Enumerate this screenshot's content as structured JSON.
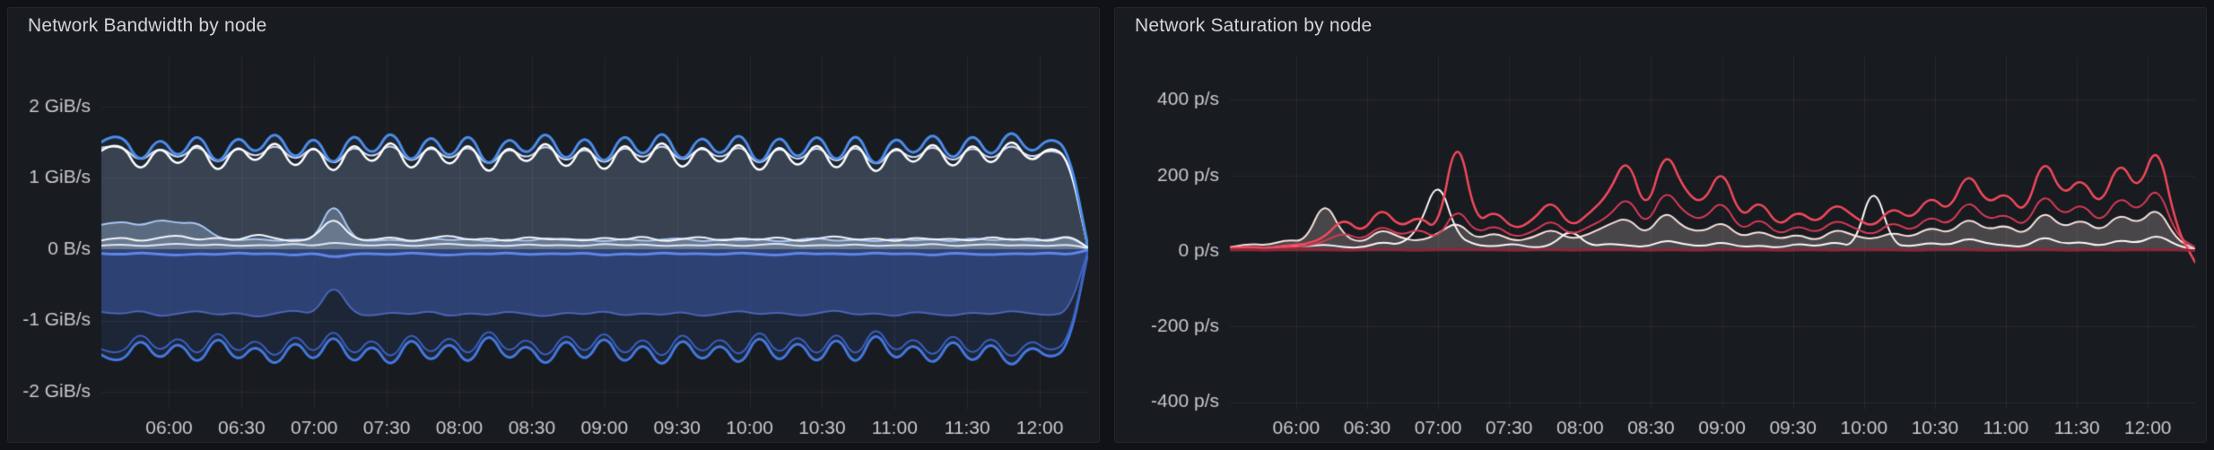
{
  "theme": {
    "page_bg": "#111217",
    "panel_bg": "#181b1f",
    "panel_border": "#25262c",
    "grid_color": "rgba(204,204,220,0.08)",
    "axis_text_color": "#c7c8ce",
    "title_color": "#d3d4da"
  },
  "chart_data": [
    {
      "type": "line",
      "title": "Network Bandwidth by node",
      "ylabel_unit": "GiB/s",
      "ylim": [
        -2.25,
        2.7
      ],
      "trange": [
        -28,
        380
      ],
      "t_start_min": -28,
      "sample_interval_min": 8,
      "grid": true,
      "legend": "none",
      "yticks": [
        {
          "v": 2,
          "label": "2 GiB/s"
        },
        {
          "v": 1,
          "label": "1 GiB/s"
        },
        {
          "v": 0,
          "label": "0 B/s"
        },
        {
          "v": -1,
          "label": "-1 GiB/s"
        },
        {
          "v": -2,
          "label": "-2 GiB/s"
        }
      ],
      "xticks": [
        {
          "t": 0,
          "label": "06:00"
        },
        {
          "t": 30,
          "label": "06:30"
        },
        {
          "t": 60,
          "label": "07:00"
        },
        {
          "t": 90,
          "label": "07:30"
        },
        {
          "t": 120,
          "label": "08:00"
        },
        {
          "t": 150,
          "label": "08:30"
        },
        {
          "t": 180,
          "label": "09:00"
        },
        {
          "t": 210,
          "label": "09:30"
        },
        {
          "t": 240,
          "label": "10:00"
        },
        {
          "t": 270,
          "label": "10:30"
        },
        {
          "t": 300,
          "label": "11:00"
        },
        {
          "t": 330,
          "label": "11:30"
        },
        {
          "t": 360,
          "label": "12:00"
        }
      ],
      "series": [
        {
          "name": "receive-pale-line",
          "color": "#cbd7ee",
          "width": 2,
          "values": [
            1.42,
            1.48,
            1.2,
            1.45,
            1.24,
            1.49,
            1.15,
            1.46,
            1.26,
            1.5,
            1.21,
            1.47,
            1.13,
            1.48,
            1.25,
            1.51,
            1.17,
            1.47,
            1.22,
            1.49,
            1.12,
            1.45,
            1.24,
            1.5,
            1.18,
            1.46,
            1.14,
            1.48,
            1.23,
            1.51,
            1.19,
            1.46,
            1.24,
            1.49,
            1.13,
            1.47,
            1.2,
            1.48,
            1.16,
            1.5,
            1.11,
            1.45,
            1.23,
            1.49,
            1.18,
            1.47,
            1.22,
            1.5,
            1.26,
            1.4,
            1.3,
            0.02
          ]
        },
        {
          "name": "receive-white-line",
          "color": "#ffffff",
          "width": 2.5,
          "fill": "rgba(200,212,228,0.17)",
          "values": [
            1.38,
            1.55,
            1.02,
            1.5,
            1.1,
            1.58,
            0.98,
            1.52,
            1.15,
            1.6,
            1.05,
            1.54,
            0.96,
            1.57,
            1.12,
            1.62,
            1.0,
            1.55,
            1.08,
            1.58,
            0.95,
            1.52,
            1.13,
            1.6,
            1.03,
            1.55,
            0.98,
            1.57,
            1.1,
            1.62,
            1.02,
            1.53,
            1.12,
            1.59,
            0.96,
            1.55,
            1.06,
            1.58,
            1.0,
            1.6,
            0.94,
            1.52,
            1.12,
            1.58,
            1.04,
            1.56,
            1.1,
            1.61,
            1.18,
            1.45,
            1.28,
            0.02
          ]
        },
        {
          "name": "receive-blue-line",
          "color": "#4b8ceb",
          "width": 3,
          "fill": "rgba(75,140,235,0.10)",
          "values": [
            1.5,
            1.68,
            1.15,
            1.62,
            1.22,
            1.7,
            1.1,
            1.65,
            1.28,
            1.72,
            1.18,
            1.66,
            1.08,
            1.7,
            1.25,
            1.74,
            1.12,
            1.68,
            1.2,
            1.71,
            1.06,
            1.64,
            1.26,
            1.73,
            1.15,
            1.67,
            1.1,
            1.7,
            1.22,
            1.75,
            1.14,
            1.66,
            1.24,
            1.72,
            1.08,
            1.68,
            1.18,
            1.7,
            1.12,
            1.73,
            1.05,
            1.65,
            1.25,
            1.71,
            1.16,
            1.69,
            1.22,
            1.74,
            1.3,
            1.58,
            1.4,
            0.03
          ]
        },
        {
          "name": "receive-low-lightblue",
          "color": "#a9c7f2",
          "width": 2,
          "fill": "rgba(169,199,242,0.30)",
          "values": [
            0.34,
            0.4,
            0.32,
            0.42,
            0.36,
            0.38,
            0.16,
            0.12,
            0.15,
            0.11,
            0.14,
            0.12,
            0.72,
            0.14,
            0.11,
            0.14,
            0.1,
            0.16,
            0.12,
            0.15,
            0.1,
            0.14,
            0.11,
            0.16,
            0.12,
            0.14,
            0.1,
            0.15,
            0.11,
            0.13,
            0.16,
            0.1,
            0.14,
            0.12,
            0.15,
            0.1,
            0.13,
            0.16,
            0.11,
            0.14,
            0.1,
            0.15,
            0.12,
            0.14,
            0.1,
            0.16,
            0.12,
            0.15,
            0.11,
            0.13,
            0.18,
            0.02
          ]
        },
        {
          "name": "receive-low-white",
          "color": "#f4f7fd",
          "width": 2,
          "fill": "rgba(255,255,255,0.10)",
          "values": [
            0.12,
            0.18,
            0.1,
            0.16,
            0.2,
            0.12,
            0.17,
            0.11,
            0.22,
            0.15,
            0.1,
            0.16,
            0.48,
            0.14,
            0.12,
            0.18,
            0.1,
            0.15,
            0.2,
            0.12,
            0.16,
            0.1,
            0.18,
            0.13,
            0.15,
            0.11,
            0.17,
            0.12,
            0.19,
            0.1,
            0.14,
            0.18,
            0.11,
            0.16,
            0.12,
            0.18,
            0.1,
            0.15,
            0.19,
            0.12,
            0.16,
            0.1,
            0.17,
            0.13,
            0.15,
            0.11,
            0.18,
            0.12,
            0.16,
            0.1,
            0.2,
            0.02
          ]
        },
        {
          "name": "receive-zero-shimmer",
          "color": "#dce8fa",
          "width": 2,
          "values": [
            0.05,
            0.07,
            0.04,
            0.06,
            0.08,
            0.05,
            0.07,
            0.04,
            0.06,
            0.05,
            0.08,
            0.04,
            0.1,
            0.06,
            0.05,
            0.07,
            0.04,
            0.06,
            0.08,
            0.05,
            0.06,
            0.04,
            0.07,
            0.05,
            0.06,
            0.04,
            0.08,
            0.05,
            0.07,
            0.04,
            0.06,
            0.05,
            0.07,
            0.04,
            0.06,
            0.08,
            0.04,
            0.06,
            0.05,
            0.07,
            0.04,
            0.06,
            0.05,
            0.08,
            0.04,
            0.06,
            0.07,
            0.05,
            0.06,
            0.04,
            0.07,
            0.01
          ]
        },
        {
          "name": "transmit-indigo-area",
          "color": "#4a64b8",
          "width": 2,
          "fill": "rgba(56,74,140,0.65)",
          "values": [
            -0.88,
            -0.92,
            -0.85,
            -0.95,
            -0.9,
            -0.86,
            -0.93,
            -0.88,
            -0.96,
            -0.9,
            -0.85,
            -0.92,
            -0.45,
            -0.9,
            -0.94,
            -0.88,
            -0.92,
            -0.86,
            -0.95,
            -0.89,
            -0.93,
            -0.87,
            -0.91,
            -0.95,
            -0.88,
            -0.92,
            -0.86,
            -0.94,
            -0.89,
            -0.93,
            -0.87,
            -0.95,
            -0.9,
            -0.86,
            -0.92,
            -0.88,
            -0.94,
            -0.9,
            -0.85,
            -0.93,
            -0.89,
            -0.95,
            -0.87,
            -0.91,
            -0.94,
            -0.88,
            -0.92,
            -0.86,
            -0.9,
            -0.93,
            -0.88,
            -0.02
          ]
        },
        {
          "name": "transmit-blue-line",
          "color": "#4478e0",
          "width": 3,
          "fill": "rgba(68,120,224,0.12)",
          "values": [
            -1.48,
            -1.65,
            -1.2,
            -1.6,
            -1.25,
            -1.68,
            -1.15,
            -1.62,
            -1.3,
            -1.7,
            -1.22,
            -1.64,
            -1.12,
            -1.67,
            -1.28,
            -1.72,
            -1.16,
            -1.65,
            -1.24,
            -1.69,
            -1.1,
            -1.62,
            -1.28,
            -1.71,
            -1.18,
            -1.64,
            -1.14,
            -1.68,
            -1.25,
            -1.73,
            -1.17,
            -1.63,
            -1.27,
            -1.7,
            -1.12,
            -1.66,
            -1.22,
            -1.68,
            -1.15,
            -1.71,
            -1.08,
            -1.62,
            -1.27,
            -1.69,
            -1.19,
            -1.66,
            -1.24,
            -1.72,
            -1.32,
            -1.55,
            -1.38,
            -0.03
          ]
        },
        {
          "name": "transmit-medium-blue-line",
          "color": "#3b5fc0",
          "width": 2,
          "values": [
            -1.4,
            -1.52,
            -1.12,
            -1.48,
            -1.18,
            -1.55,
            -1.08,
            -1.5,
            -1.22,
            -1.58,
            -1.14,
            -1.52,
            -1.05,
            -1.55,
            -1.2,
            -1.6,
            -1.1,
            -1.53,
            -1.16,
            -1.56,
            -1.04,
            -1.5,
            -1.2,
            -1.58,
            -1.12,
            -1.52,
            -1.08,
            -1.55,
            -1.18,
            -1.6,
            -1.1,
            -1.51,
            -1.19,
            -1.57,
            -1.06,
            -1.53,
            -1.15,
            -1.56,
            -1.09,
            -1.58,
            -1.02,
            -1.5,
            -1.19,
            -1.57,
            -1.12,
            -1.54,
            -1.17,
            -1.59,
            -1.24,
            -1.45,
            -1.3,
            -0.02
          ]
        },
        {
          "name": "transmit-zero-shimmer",
          "color": "#5f86e8",
          "width": 3,
          "values": [
            -0.06,
            -0.08,
            -0.05,
            -0.07,
            -0.09,
            -0.06,
            -0.08,
            -0.05,
            -0.07,
            -0.06,
            -0.09,
            -0.05,
            -0.12,
            -0.07,
            -0.06,
            -0.08,
            -0.05,
            -0.07,
            -0.09,
            -0.06,
            -0.07,
            -0.05,
            -0.08,
            -0.06,
            -0.07,
            -0.05,
            -0.09,
            -0.06,
            -0.08,
            -0.05,
            -0.07,
            -0.06,
            -0.08,
            -0.05,
            -0.07,
            -0.09,
            -0.05,
            -0.07,
            -0.06,
            -0.08,
            -0.05,
            -0.07,
            -0.06,
            -0.09,
            -0.05,
            -0.07,
            -0.08,
            -0.06,
            -0.07,
            -0.05,
            -0.08,
            -0.01
          ]
        }
      ]
    },
    {
      "type": "line",
      "title": "Network Saturation by node",
      "ylabel_unit": "p/s",
      "ylim": [
        -420,
        515
      ],
      "trange": [
        -28,
        380
      ],
      "t_start_min": -28,
      "sample_interval_min": 8,
      "grid": true,
      "legend": "none",
      "yticks": [
        {
          "v": 400,
          "label": "400 p/s"
        },
        {
          "v": 200,
          "label": "200 p/s"
        },
        {
          "v": 0,
          "label": "0 p/s"
        },
        {
          "v": -200,
          "label": "-200 p/s"
        },
        {
          "v": -400,
          "label": "-400 p/s"
        }
      ],
      "xticks": [
        {
          "t": 0,
          "label": "06:00"
        },
        {
          "t": 30,
          "label": "06:30"
        },
        {
          "t": 60,
          "label": "07:00"
        },
        {
          "t": 90,
          "label": "07:30"
        },
        {
          "t": 120,
          "label": "08:00"
        },
        {
          "t": 150,
          "label": "08:30"
        },
        {
          "t": 180,
          "label": "09:00"
        },
        {
          "t": 210,
          "label": "09:30"
        },
        {
          "t": 240,
          "label": "10:00"
        },
        {
          "t": 270,
          "label": "10:30"
        },
        {
          "t": 300,
          "label": "11:00"
        },
        {
          "t": 330,
          "label": "11:30"
        },
        {
          "t": 360,
          "label": "12:00"
        }
      ],
      "series": [
        {
          "name": "saturation-pink-line",
          "color": "#f7e0dd",
          "width": 2,
          "fill": "rgba(247,224,221,0.22)",
          "values": [
            10,
            20,
            15,
            30,
            25,
            140,
            40,
            20,
            60,
            35,
            25,
            45,
            80,
            30,
            50,
            25,
            35,
            60,
            30,
            45,
            70,
            90,
            40,
            110,
            60,
            50,
            80,
            35,
            55,
            30,
            45,
            25,
            60,
            40,
            30,
            50,
            35,
            65,
            45,
            90,
            55,
            70,
            40,
            110,
            60,
            85,
            50,
            100,
            70,
            120,
            30,
            5
          ]
        },
        {
          "name": "saturation-white-line",
          "color": "#fff6f6",
          "width": 2,
          "values": [
            5,
            10,
            6,
            15,
            12,
            18,
            10,
            8,
            25,
            15,
            60,
            200,
            40,
            15,
            12,
            20,
            8,
            15,
            60,
            12,
            20,
            15,
            10,
            30,
            18,
            12,
            25,
            10,
            15,
            8,
            20,
            12,
            25,
            10,
            190,
            18,
            12,
            22,
            15,
            35,
            20,
            15,
            10,
            40,
            18,
            25,
            12,
            30,
            20,
            45,
            15,
            3
          ]
        },
        {
          "name": "saturation-red-secondary-line",
          "color": "#d63a55",
          "width": 2,
          "values": [
            5,
            8,
            4,
            10,
            12,
            25,
            50,
            28,
            70,
            40,
            60,
            30,
            120,
            45,
            70,
            35,
            50,
            85,
            40,
            65,
            90,
            150,
            60,
            170,
            100,
            80,
            140,
            50,
            90,
            40,
            70,
            45,
            85,
            60,
            40,
            80,
            50,
            95,
            65,
            140,
            80,
            100,
            60,
            160,
            90,
            130,
            70,
            150,
            100,
            180,
            40,
            10
          ]
        },
        {
          "name": "saturation-red-main-line",
          "color": "#f2495c",
          "width": 2.5,
          "values": [
            8,
            12,
            6,
            15,
            18,
            35,
            90,
            45,
            120,
            60,
            95,
            50,
            330,
            70,
            110,
            55,
            80,
            140,
            60,
            100,
            150,
            260,
            90,
            280,
            160,
            120,
            230,
            80,
            140,
            60,
            110,
            70,
            130,
            90,
            60,
            120,
            80,
            150,
            100,
            220,
            120,
            160,
            90,
            260,
            140,
            200,
            110,
            250,
            150,
            300,
            60,
            -30
          ]
        },
        {
          "name": "saturation-darkred-baseline",
          "color": "#8f2438",
          "width": 3,
          "values": [
            3,
            4,
            2,
            5,
            3,
            4,
            2,
            3,
            5,
            3,
            2,
            4,
            6,
            3,
            4,
            2,
            3,
            5,
            2,
            4,
            3,
            5,
            2,
            4,
            3,
            2,
            5,
            3,
            4,
            2,
            3,
            4,
            2,
            5,
            3,
            4,
            2,
            3,
            5,
            4,
            2,
            3,
            4,
            5,
            2,
            3,
            4,
            2,
            5,
            3,
            4,
            1
          ]
        }
      ]
    }
  ]
}
